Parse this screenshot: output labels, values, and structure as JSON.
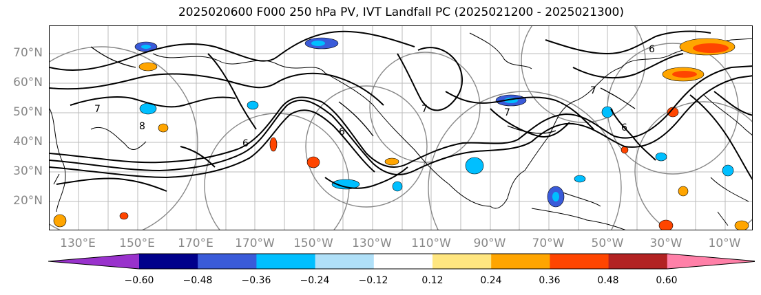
{
  "title": "2025020600 F000 250 hPa PV, IVT Landfall PC (2025021200 - 2025021300)",
  "lat_labels": [
    "70°N",
    "60°N",
    "50°N",
    "40°N",
    "30°N",
    "20°N"
  ],
  "lon_labels": [
    "130°E",
    "150°E",
    "170°E",
    "170°W",
    "150°W",
    "130°W",
    "110°W",
    "90°W",
    "70°W",
    "50°W",
    "30°W",
    "10°W"
  ],
  "colorbar": {
    "colors": [
      "#9932cc",
      "#00008b",
      "#3a5bd9",
      "#00bfff",
      "#b0e0f8",
      "#ffffff",
      "#ffe680",
      "#ffa500",
      "#ff4500",
      "#b22222",
      "#ff80a8"
    ],
    "tick_labels": [
      "−0.60",
      "−0.48",
      "−0.36",
      "−0.24",
      "−0.12",
      "0.12",
      "0.24",
      "0.36",
      "0.48",
      "0.60"
    ]
  },
  "contour_labels": [
    "7",
    "6",
    "7",
    "6",
    "7",
    "8",
    "6",
    "6",
    "7"
  ]
}
